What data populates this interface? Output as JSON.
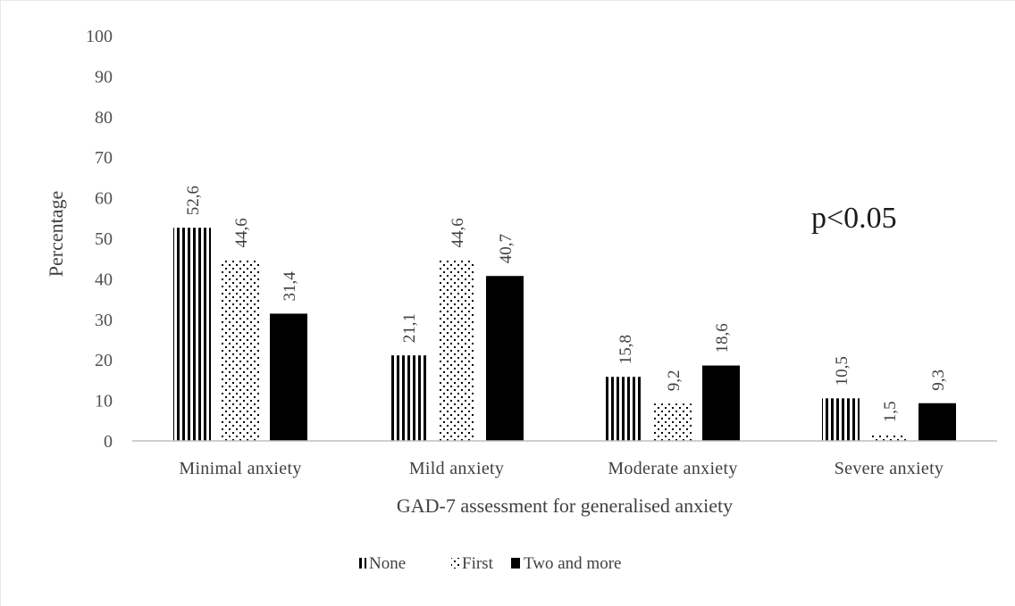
{
  "chart_data": {
    "type": "bar",
    "categories": [
      "Minimal anxiety",
      "Mild anxiety",
      "Moderate anxiety",
      "Severe anxiety"
    ],
    "series": [
      {
        "name": "None",
        "pattern": "vertical-stripes",
        "values": [
          52.6,
          21.1,
          15.8,
          10.5
        ],
        "labels": [
          "52,6",
          "21,1",
          "15,8",
          "10,5"
        ]
      },
      {
        "name": "First",
        "pattern": "dots",
        "values": [
          44.6,
          44.6,
          9.2,
          1.5
        ],
        "labels": [
          "44,6",
          "44,6",
          "9,2",
          "1,5"
        ]
      },
      {
        "name": "Two and more",
        "pattern": "solid",
        "values": [
          31.4,
          40.7,
          18.6,
          9.3
        ],
        "labels": [
          "31,4",
          "40,7",
          "18,6",
          "9,3"
        ]
      }
    ],
    "xlabel": "GAD-7 assessment for generalised anxiety",
    "ylabel": "Percentage",
    "ylim": [
      0,
      100
    ],
    "yticks": [
      "0",
      "10",
      "20",
      "30",
      "40",
      "50",
      "60",
      "70",
      "80",
      "90",
      "100"
    ],
    "annotation": "p<0.05",
    "grid": false,
    "legend_position": "bottom",
    "colors": {
      "bar": "#000000",
      "axis": "#bfbfbf",
      "text": "#404040"
    }
  }
}
